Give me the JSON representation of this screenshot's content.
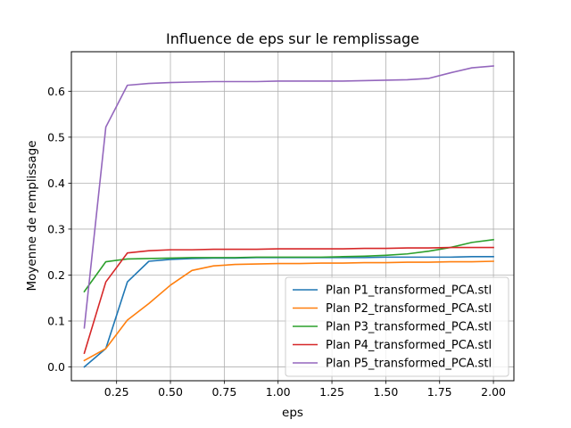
{
  "chart_data": {
    "type": "line",
    "title": "Influence de eps sur le remplissage",
    "xlabel": "eps",
    "ylabel": "Moyenne de remplissage",
    "xlim": [
      0.04,
      2.095
    ],
    "ylim": [
      -0.03,
      0.686
    ],
    "xticks": [
      0.25,
      0.5,
      0.75,
      1.0,
      1.25,
      1.5,
      1.75,
      2.0
    ],
    "xtick_labels": [
      "0.25",
      "0.50",
      "0.75",
      "1.00",
      "1.25",
      "1.50",
      "1.75",
      "2.00"
    ],
    "yticks": [
      0.0,
      0.1,
      0.2,
      0.3,
      0.4,
      0.5,
      0.6
    ],
    "ytick_labels": [
      "0.0",
      "0.1",
      "0.2",
      "0.3",
      "0.4",
      "0.5",
      "0.6"
    ],
    "grid": true,
    "legend_position": "lower-right",
    "x": [
      0.1,
      0.2,
      0.3,
      0.4,
      0.5,
      0.6,
      0.7,
      0.8,
      0.9,
      1.0,
      1.1,
      1.2,
      1.3,
      1.4,
      1.5,
      1.6,
      1.7,
      1.8,
      1.9,
      2.0
    ],
    "series": [
      {
        "name": "Plan P1_transformed_PCA.stl",
        "color": "#1f77b4",
        "values": [
          0.0,
          0.04,
          0.185,
          0.23,
          0.234,
          0.236,
          0.237,
          0.237,
          0.238,
          0.238,
          0.238,
          0.238,
          0.238,
          0.238,
          0.239,
          0.239,
          0.239,
          0.239,
          0.24,
          0.24
        ]
      },
      {
        "name": "Plan P2_transformed_PCA.stl",
        "color": "#ff7f0e",
        "values": [
          0.014,
          0.04,
          0.102,
          0.138,
          0.178,
          0.21,
          0.22,
          0.223,
          0.224,
          0.225,
          0.225,
          0.226,
          0.226,
          0.227,
          0.227,
          0.228,
          0.228,
          0.229,
          0.229,
          0.23
        ]
      },
      {
        "name": "Plan P3_transformed_PCA.stl",
        "color": "#2ca02c",
        "values": [
          0.164,
          0.229,
          0.235,
          0.236,
          0.237,
          0.238,
          0.238,
          0.238,
          0.239,
          0.239,
          0.239,
          0.239,
          0.24,
          0.241,
          0.243,
          0.246,
          0.252,
          0.26,
          0.271,
          0.277
        ]
      },
      {
        "name": "Plan P4_transformed_PCA.stl",
        "color": "#d62728",
        "values": [
          0.03,
          0.185,
          0.248,
          0.253,
          0.255,
          0.255,
          0.256,
          0.256,
          0.256,
          0.257,
          0.257,
          0.257,
          0.257,
          0.258,
          0.258,
          0.259,
          0.259,
          0.26,
          0.26,
          0.26
        ]
      },
      {
        "name": "Plan P5_transformed_PCA.stl",
        "color": "#9467bd",
        "values": [
          0.085,
          0.522,
          0.613,
          0.617,
          0.619,
          0.62,
          0.621,
          0.621,
          0.621,
          0.622,
          0.622,
          0.622,
          0.622,
          0.623,
          0.624,
          0.625,
          0.628,
          0.64,
          0.651,
          0.655
        ]
      }
    ]
  }
}
